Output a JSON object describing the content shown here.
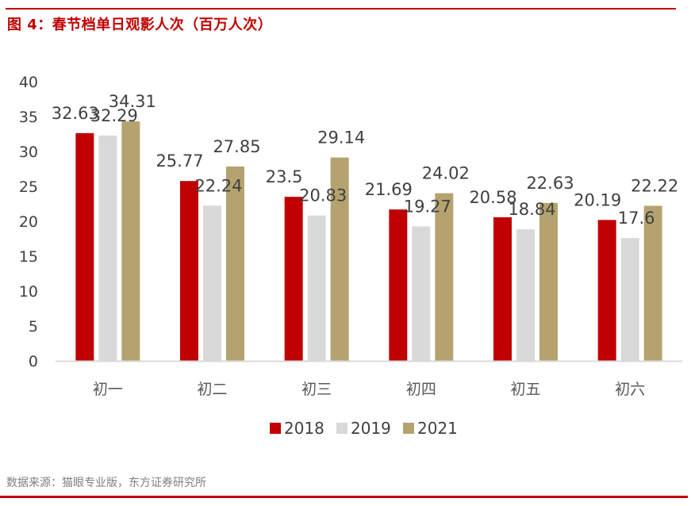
{
  "title": "图 4：春节档单日观影人次（百万人次）",
  "source": "数据来源：猫眼专业版，东方证券研究所",
  "chart_data": {
    "type": "bar",
    "title": "春节档单日观影人次（百万人次）",
    "xlabel": "",
    "ylabel": "",
    "ylim": [
      0,
      40
    ],
    "yticks": [
      0,
      5,
      10,
      15,
      20,
      25,
      30,
      35,
      40
    ],
    "ytick_labels": [
      "0",
      "5",
      "10",
      "15",
      "20",
      "25",
      "30",
      "35",
      "40"
    ],
    "grid": false,
    "legend_position": "bottom",
    "categories": [
      "初一",
      "初二",
      "初三",
      "初四",
      "初五",
      "初六"
    ],
    "series": [
      {
        "name": "2018",
        "color": "#c00000",
        "values": [
          32.63,
          25.77,
          23.5,
          21.69,
          20.58,
          20.19
        ],
        "labels": [
          "32.63",
          "25.77",
          "23.5",
          "21.69",
          "20.58",
          "20.19"
        ]
      },
      {
        "name": "2019",
        "color": "#d9d9d9",
        "values": [
          32.29,
          22.24,
          20.83,
          19.27,
          18.84,
          17.6
        ],
        "labels": [
          "32.29",
          "22.24",
          "20.83",
          "19.27",
          "18.84",
          "17.6"
        ]
      },
      {
        "name": "2021",
        "color": "#b5a36f",
        "values": [
          34.31,
          27.85,
          29.14,
          24.02,
          22.63,
          22.22
        ],
        "labels": [
          "34.31",
          "27.85",
          "29.14",
          "24.02",
          "22.63",
          "22.22"
        ]
      }
    ]
  }
}
